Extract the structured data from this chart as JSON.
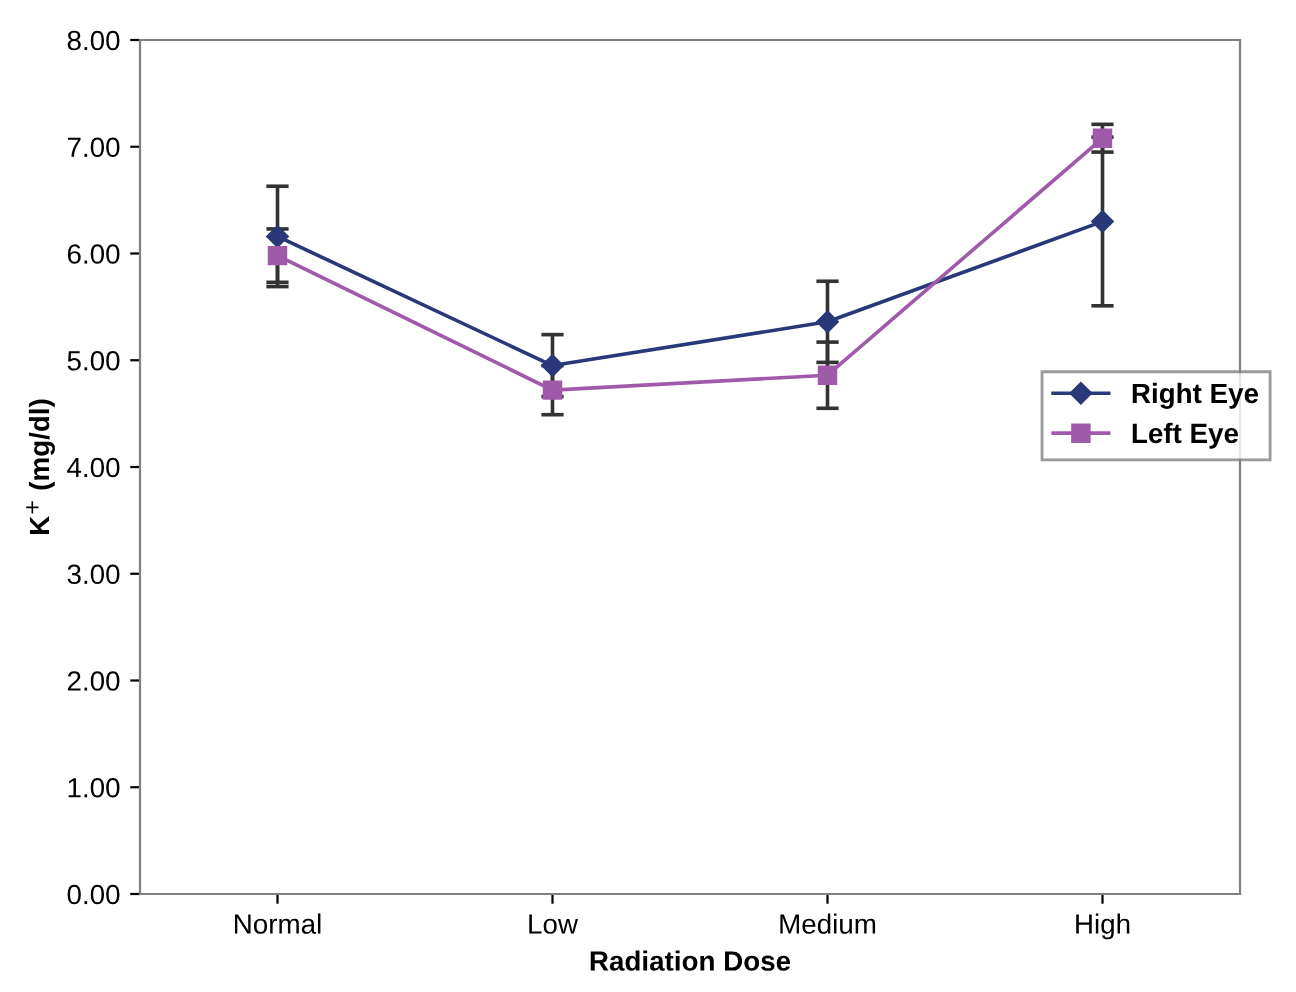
{
  "chart_data": {
    "type": "line",
    "xlabel": "Radiation Dose",
    "ylabel": "K$^{+}$ (mg/dl)",
    "categories": [
      "Normal",
      "Low",
      "Medium",
      "High"
    ],
    "series": [
      {
        "name": "Right Eye",
        "color": "#283878",
        "marker": "diamond",
        "values": [
          6.16,
          4.95,
          5.36,
          6.3
        ],
        "errors": [
          0.47,
          0.29,
          0.38,
          0.79
        ]
      },
      {
        "name": "Left Eye",
        "color": "#a05aaa",
        "marker": "square",
        "values": [
          5.98,
          4.72,
          4.86,
          7.08
        ],
        "errors": [
          0.25,
          0.23,
          0.31,
          0.13
        ]
      }
    ],
    "ylim": [
      0,
      8
    ],
    "yticks": [
      {
        "value": 0,
        "label": "0.00"
      },
      {
        "value": 1,
        "label": "1.00"
      },
      {
        "value": 2,
        "label": "2.00"
      },
      {
        "value": 3,
        "label": "3.00"
      },
      {
        "value": 4,
        "label": "4.00"
      },
      {
        "value": 5,
        "label": "5.00"
      },
      {
        "value": 6,
        "label": "6.00"
      },
      {
        "value": 7,
        "label": "7.00"
      },
      {
        "value": 8,
        "label": "8.00"
      }
    ],
    "grid": false,
    "legend": "right"
  }
}
